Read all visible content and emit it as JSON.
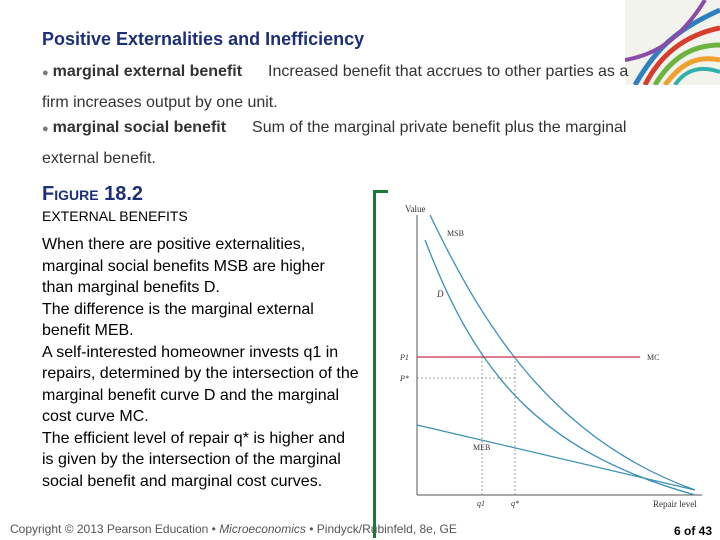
{
  "slide": {
    "title": "Positive Externalities and Inefficiency",
    "definitions": [
      {
        "bullet": "●",
        "term": "marginal external benefit",
        "text": "Increased benefit that accrues to other parties as a firm increases output by one unit."
      },
      {
        "bullet": "●",
        "term": "marginal social benefit",
        "text": "Sum of the marginal private benefit plus the marginal external benefit."
      }
    ],
    "figure": {
      "label_prefix": "F",
      "label_small": "IGURE",
      "label_num": "18.2",
      "subtitle": "EXTERNAL BENEFITS",
      "caption_lines": [
        "When there are positive externalities, marginal social benefits MSB are higher than marginal benefits D.",
        "The difference is the marginal external benefit MEB.",
        "A self-interested homeowner invests q1 in repairs, determined by the intersection of the marginal benefit curve D and the marginal cost curve MC.",
        "The efficient level of repair q* is higher and is given by the intersection of the marginal social benefit and marginal cost curves."
      ]
    },
    "footer": {
      "copyright": "Copyright © 2013 Pearson Education •",
      "book": "Microeconomics",
      "rest": "• Pindyck/Rubinfeld, 8e, GE"
    },
    "page": "6 of 43"
  },
  "chart_data": {
    "type": "line",
    "ylabel": "Value",
    "xlabel": "Repair level",
    "series": [
      {
        "name": "MSB",
        "color": "#3a8fb5"
      },
      {
        "name": "D",
        "color": "#3a8fb5"
      },
      {
        "name": "MC",
        "color": "#c8304a"
      },
      {
        "name": "MEB",
        "color": "#3a8fb5"
      }
    ],
    "y_ticks": [
      "P1",
      "P*"
    ],
    "x_ticks": [
      "q1",
      "q*"
    ],
    "grid": false
  }
}
